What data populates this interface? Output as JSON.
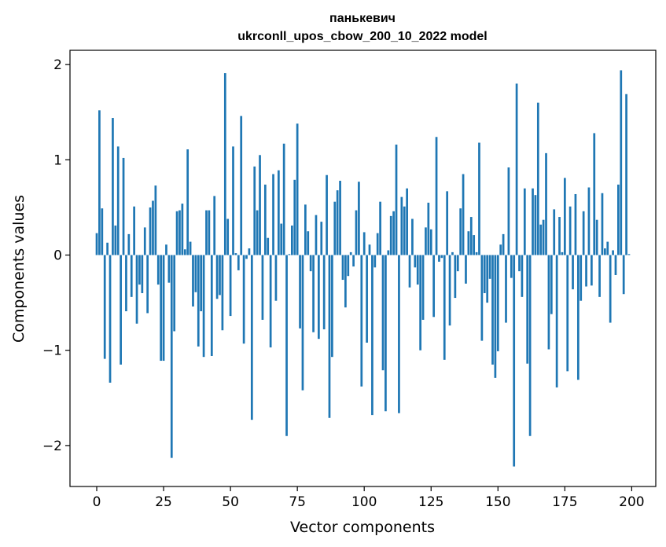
{
  "chart_data": {
    "type": "bar",
    "title_line1": "панькевич",
    "title_line2": "ukrconll_upos_cbow_200_10_2022 model",
    "xlabel": "Vector components",
    "ylabel": "Components values",
    "xlim": [
      -10,
      209
    ],
    "ylim": [
      -2.43,
      2.15
    ],
    "xticks": [
      0,
      25,
      50,
      75,
      100,
      125,
      150,
      175,
      200
    ],
    "xtick_labels": [
      "0",
      "25",
      "50",
      "75",
      "100",
      "125",
      "150",
      "175",
      "200"
    ],
    "yticks": [
      -2,
      -1,
      0,
      1,
      2
    ],
    "ytick_labels": [
      "−2",
      "−1",
      "0",
      "1",
      "2"
    ],
    "bar_color": "#1f77b4",
    "grid": false,
    "legend": "none",
    "values": [
      0.23,
      1.52,
      0.49,
      -1.09,
      0.13,
      -1.34,
      1.44,
      0.31,
      1.14,
      -1.15,
      1.02,
      -0.59,
      0.22,
      -0.44,
      0.51,
      -0.72,
      -0.31,
      -0.4,
      0.29,
      -0.61,
      0.5,
      0.57,
      0.73,
      -0.31,
      -1.11,
      -1.11,
      0.11,
      -0.29,
      -2.13,
      -0.8,
      0.46,
      0.47,
      0.54,
      0.06,
      1.11,
      0.14,
      -0.54,
      -0.39,
      -0.96,
      -0.59,
      -1.07,
      0.47,
      0.47,
      -1.06,
      0.62,
      -0.46,
      -0.42,
      -0.79,
      1.91,
      0.38,
      -0.64,
      1.14,
      0.02,
      -0.16,
      1.46,
      -0.93,
      -0.04,
      0.07,
      -1.73,
      0.93,
      0.47,
      1.05,
      -0.68,
      0.74,
      0.18,
      -0.97,
      0.85,
      -0.48,
      0.89,
      0.33,
      1.17,
      -1.9,
      0.01,
      0.31,
      0.79,
      1.38,
      -0.77,
      -1.42,
      0.53,
      0.25,
      -0.17,
      -0.81,
      0.42,
      -0.88,
      0.35,
      -0.78,
      0.84,
      -1.71,
      -1.07,
      0.56,
      0.68,
      0.78,
      -0.26,
      -0.55,
      -0.22,
      0.03,
      -0.12,
      0.47,
      0.77,
      -1.38,
      0.24,
      -0.92,
      0.11,
      -1.68,
      -0.13,
      0.23,
      0.56,
      -1.21,
      -1.64,
      0.05,
      0.41,
      0.46,
      1.16,
      -1.66,
      0.61,
      0.51,
      0.7,
      -0.34,
      0.38,
      -0.13,
      -0.31,
      -1.0,
      -0.68,
      0.29,
      0.55,
      0.27,
      -0.65,
      1.24,
      -0.07,
      -0.03,
      -1.1,
      0.67,
      -0.74,
      0.03,
      -0.45,
      -0.17,
      0.49,
      0.85,
      -0.3,
      0.25,
      0.4,
      0.21,
      0.03,
      1.18,
      -0.9,
      -0.4,
      -0.5,
      -0.25,
      -1.15,
      -1.29,
      -1.01,
      0.11,
      0.22,
      -0.71,
      0.92,
      -0.24,
      -2.22,
      1.8,
      -0.17,
      -0.44,
      0.7,
      -1.14,
      -1.9,
      0.7,
      0.63,
      1.6,
      0.32,
      0.37,
      1.07,
      -0.99,
      -0.62,
      0.48,
      -1.39,
      0.4,
      0.03,
      0.81,
      -1.22,
      0.51,
      -0.36,
      0.64,
      -1.31,
      -0.48,
      0.46,
      -0.33,
      0.71,
      -0.32,
      1.28,
      0.37,
      -0.44,
      0.65,
      0.07,
      0.14,
      -0.71,
      0.05,
      -0.21,
      0.74,
      1.94,
      -0.41,
      1.69,
      0.01
    ]
  }
}
